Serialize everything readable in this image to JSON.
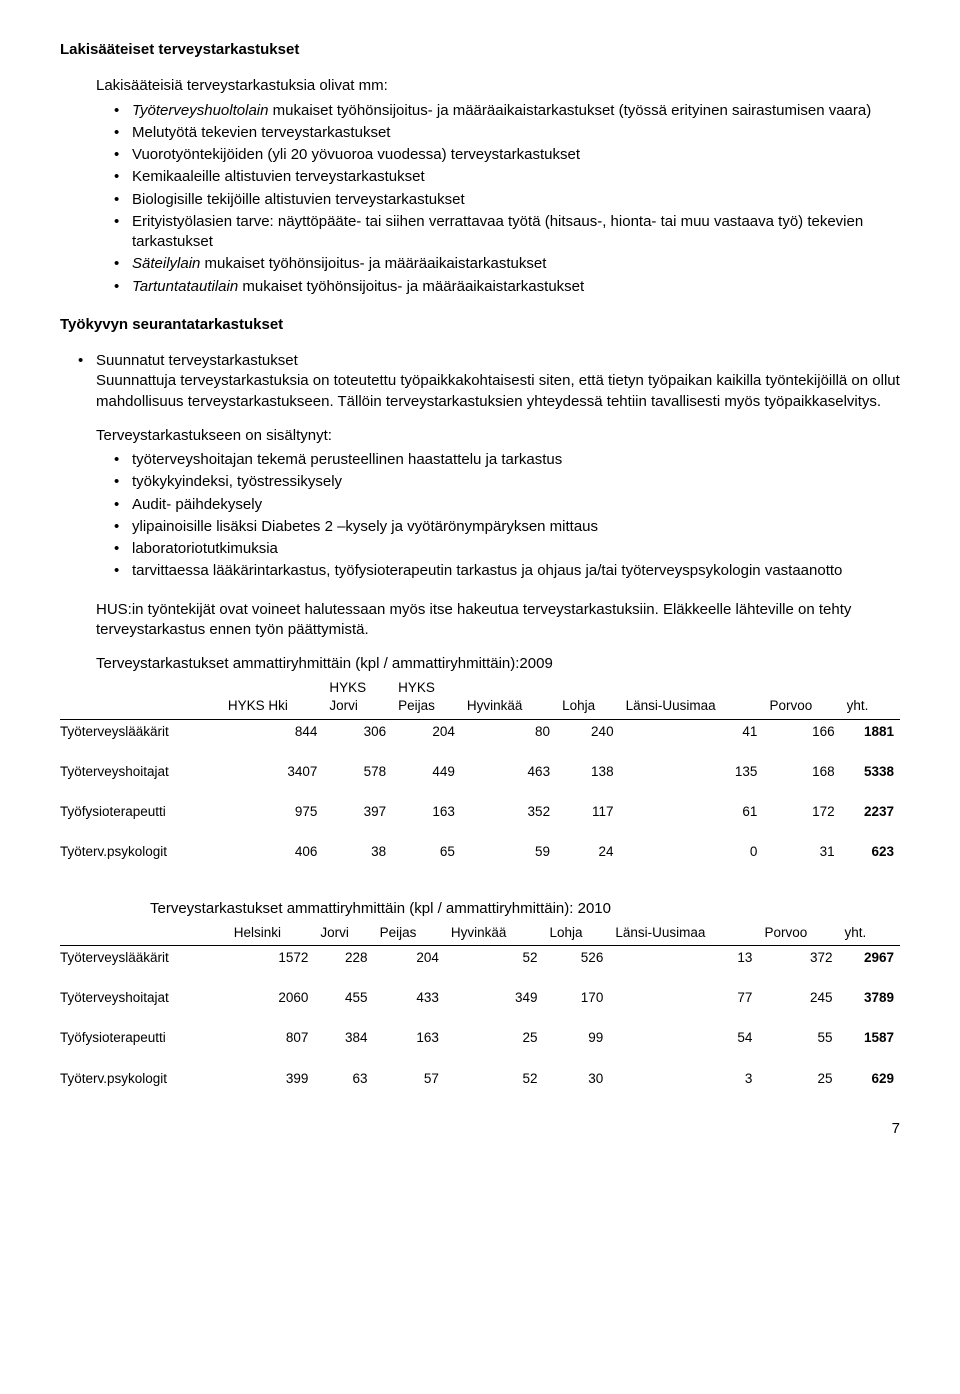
{
  "headings": {
    "h1": "Lakisääteiset terveystarkastukset",
    "intro": "Lakisääteisiä terveystarkastuksia olivat mm:",
    "h2": "Työkyvyn seurantatarkastukset",
    "para_suunnatut_title": "Suunnatut terveystarkastukset",
    "para_suunnatut_body": "Suunnattuja terveystarkastuksia on toteutettu työpaikkakohtaisesti siten, että tietyn työpaikan kaikilla työntekijöillä on ollut mahdollisuus terveystarkastukseen. Tällöin terveystarkastuksien yhteydessä tehtiin tavallisesti myös työpaikkaselvitys.",
    "sisaltynut_intro": "Terveystarkastukseen on sisältynyt:",
    "after_list_para": "HUS:in työntekijät ovat voineet halutessaan myös itse hakeutua terveystarkastuksiin. Eläkkeelle lähteville on tehty terveystarkastus ennen työn päättymistä.",
    "table1_caption": "Terveystarkastukset ammattiryhmittäin (kpl / ammattiryhmittäin):2009",
    "table2_caption": "Terveystarkastukset ammattiryhmittäin (kpl / ammattiryhmittäin): 2010"
  },
  "bullets_main": [
    {
      "pre": "",
      "it": "Työterveyshuoltolain",
      "post": " mukaiset työhönsijoitus- ja määräaikaistarkastukset (työssä erityinen sairastumisen vaara)"
    },
    {
      "pre": "Melutyötä tekevien terveystarkastukset",
      "it": "",
      "post": ""
    },
    {
      "pre": "Vuorotyöntekijöiden (yli 20 yövuoroa vuodessa) terveystarkastukset",
      "it": "",
      "post": ""
    },
    {
      "pre": "Kemikaaleille altistuvien terveystarkastukset",
      "it": "",
      "post": ""
    },
    {
      "pre": "Biologisille tekijöille altistuvien terveystarkastukset",
      "it": "",
      "post": ""
    },
    {
      "pre": "Erityistyölasien tarve: näyttöpääte- tai siihen verrattavaa työtä (hitsaus-, hionta- tai muu vastaava työ) tekevien tarkastukset",
      "it": "",
      "post": ""
    },
    {
      "pre": "",
      "it": "Säteilylain",
      "post": " mukaiset työhönsijoitus- ja määräaikaistarkastukset"
    },
    {
      "pre": "",
      "it": "Tartuntatautilain",
      "post": " mukaiset työhönsijoitus- ja määräaikaistarkastukset"
    }
  ],
  "bullets_sisaltynut": [
    "työterveyshoitajan tekemä perusteellinen haastattelu ja tarkastus",
    "työkykyindeksi, työstressikysely",
    "Audit- päihdekysely",
    "ylipainoisille lisäksi Diabetes 2 –kysely ja vyötärönympäryksen mittaus",
    "laboratoriotutkimuksia",
    "tarvittaessa lääkärintarkastus, työfysioterapeutin tarkastus ja ohjaus ja/tai työterveyspsykologin vastaanotto"
  ],
  "tables": {
    "t2009": {
      "cols": [
        "HYKS Hki",
        "HYKS Jorvi",
        "HYKS Peijas",
        "Hyvinkää",
        "Lohja",
        "Länsi-Uusimaa",
        "Porvoo",
        "yht."
      ],
      "rows": [
        {
          "label": "Työterveyslääkärit",
          "vals": [
            "844",
            "306",
            "204",
            "80",
            "240",
            "41",
            "166",
            "1881"
          ]
        },
        {
          "label": "Työterveyshoitajat",
          "vals": [
            "3407",
            "578",
            "449",
            "463",
            "138",
            "135",
            "168",
            "5338"
          ]
        },
        {
          "label": "Työfysioterapeutti",
          "vals": [
            "975",
            "397",
            "163",
            "352",
            "117",
            "61",
            "172",
            "2237"
          ]
        },
        {
          "label": "Työterv.psykologit",
          "vals": [
            "406",
            "38",
            "65",
            "59",
            "24",
            "0",
            "31",
            "623"
          ]
        }
      ]
    },
    "t2010": {
      "cols": [
        "Helsinki",
        "Jorvi",
        "Peijas",
        "Hyvinkää",
        "Lohja",
        "Länsi-Uusimaa",
        "Porvoo",
        "yht."
      ],
      "rows": [
        {
          "label": "Työterveyslääkärit",
          "vals": [
            "1572",
            "228",
            "204",
            "52",
            "526",
            "13",
            "372",
            "2967"
          ]
        },
        {
          "label": "Työterveyshoitajat",
          "vals": [
            "2060",
            "455",
            "433",
            "349",
            "170",
            "77",
            "245",
            "3789"
          ]
        },
        {
          "label": "Työfysioterapeutti",
          "vals": [
            "807",
            "384",
            "163",
            "25",
            "99",
            "54",
            "55",
            "1587"
          ]
        },
        {
          "label": "Työterv.psykologit",
          "vals": [
            "399",
            "63",
            "57",
            "52",
            "30",
            "3",
            "25",
            "629"
          ]
        }
      ]
    }
  },
  "page_number": "7"
}
